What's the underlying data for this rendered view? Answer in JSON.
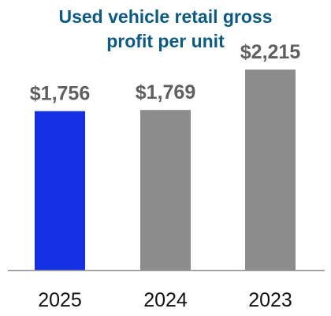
{
  "chart_data": {
    "type": "bar",
    "title_lines": [
      "Used vehicle retail gross",
      "profit per unit"
    ],
    "categories": [
      "2025",
      "2024",
      "2023"
    ],
    "values": [
      1756,
      1769,
      2215
    ],
    "value_labels": [
      "$1,756",
      "$1,769",
      "$2,215"
    ],
    "bar_colors": [
      "#1330e2",
      "#8c8c8c",
      "#8c8c8c"
    ],
    "ylim": [
      0,
      2800
    ],
    "grid": false,
    "legend": "none"
  },
  "colors": {
    "title": "#0b5a86",
    "value_label": "#5f5f5f",
    "axis": "#9a9a9a"
  }
}
